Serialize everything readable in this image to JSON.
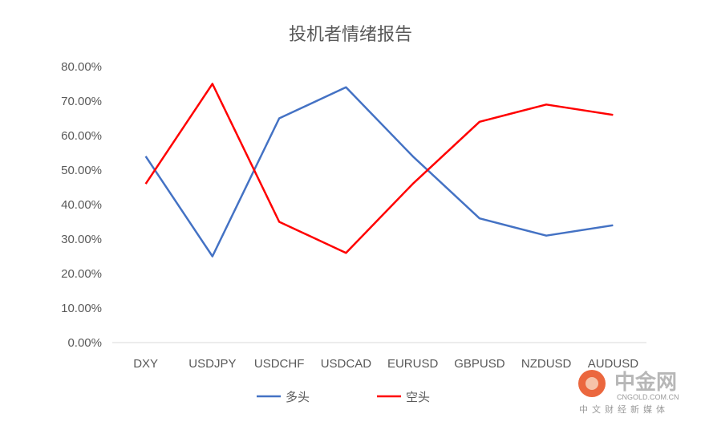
{
  "chart_data": {
    "type": "line",
    "title": "投机者情绪报告",
    "xlabel": "",
    "ylabel": "",
    "categories": [
      "DXY",
      "USDJPY",
      "USDCHF",
      "USDCAD",
      "EURUSD",
      "GBPUSD",
      "NZDUSD",
      "AUDUSD"
    ],
    "ylim": [
      0,
      0.8
    ],
    "yticks": [
      "0.00%",
      "10.00%",
      "20.00%",
      "30.00%",
      "40.00%",
      "50.00%",
      "60.00%",
      "70.00%",
      "80.00%"
    ],
    "series": [
      {
        "name": "多头",
        "color": "#4472c4",
        "values": [
          0.54,
          0.25,
          0.65,
          0.74,
          0.54,
          0.36,
          0.31,
          0.34
        ]
      },
      {
        "name": "空头",
        "color": "#ff0000",
        "values": [
          0.46,
          0.75,
          0.35,
          0.26,
          0.46,
          0.64,
          0.69,
          0.66
        ]
      }
    ],
    "grid": false,
    "legend": "bottom"
  },
  "watermark": {
    "brand": "中金网",
    "domain": "CNGOLD.COM.CN",
    "slogan": "中文财经新媒体",
    "logo_color": "#e74c1c"
  }
}
